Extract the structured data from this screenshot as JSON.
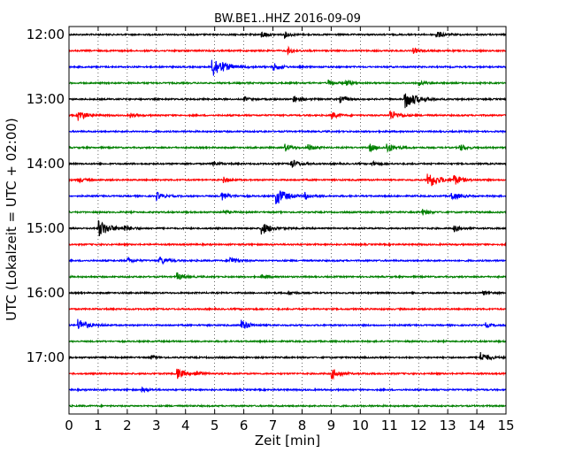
{
  "chart_data": {
    "type": "line",
    "title": "BW.BE1..HHZ 2016-09-09",
    "xlabel": "Zeit  [min]",
    "ylabel": "UTC (Lokalzeit = UTC + 02:00)",
    "xlim": [
      0,
      15
    ],
    "ylim": [
      "12:00",
      "18:00"
    ],
    "x_ticks": [
      "0",
      "1",
      "2",
      "3",
      "4",
      "5",
      "6",
      "7",
      "8",
      "9",
      "10",
      "11",
      "12",
      "13",
      "14",
      "15"
    ],
    "y_ticks": [
      "12:00",
      "13:00",
      "14:00",
      "15:00",
      "16:00",
      "17:00"
    ],
    "grid": {
      "vertical_dotted": true
    },
    "row_interval_min": 15,
    "row_colors": [
      "#000000",
      "#ff0000",
      "#0000ff",
      "#008000"
    ],
    "rows": [
      {
        "start": "12:00",
        "events": [
          {
            "t": 6.6,
            "a": 0.3
          },
          {
            "t": 7.4,
            "a": 0.25
          },
          {
            "t": 12.6,
            "a": 0.35
          },
          {
            "t": 15.0,
            "a": 0.2
          }
        ]
      },
      {
        "start": "12:15",
        "events": [
          {
            "t": 7.5,
            "a": 0.3
          },
          {
            "t": 11.8,
            "a": 0.25
          }
        ]
      },
      {
        "start": "12:30",
        "events": [
          {
            "t": 4.9,
            "a": 1.0
          },
          {
            "t": 7.0,
            "a": 0.35
          }
        ]
      },
      {
        "start": "12:45",
        "events": [
          {
            "t": 8.9,
            "a": 0.25
          },
          {
            "t": 9.5,
            "a": 0.25
          },
          {
            "t": 12.0,
            "a": 0.2
          }
        ]
      },
      {
        "start": "13:00",
        "events": [
          {
            "t": 7.7,
            "a": 0.35
          },
          {
            "t": 9.3,
            "a": 0.3
          },
          {
            "t": 11.5,
            "a": 0.9
          },
          {
            "t": 6.0,
            "a": 0.2
          }
        ]
      },
      {
        "start": "13:15",
        "events": [
          {
            "t": 0.3,
            "a": 0.5
          },
          {
            "t": 2.1,
            "a": 0.2
          },
          {
            "t": 9.0,
            "a": 0.3
          },
          {
            "t": 11.0,
            "a": 0.5
          }
        ]
      },
      {
        "start": "13:30",
        "events": []
      },
      {
        "start": "13:45",
        "events": [
          {
            "t": 7.4,
            "a": 0.35
          },
          {
            "t": 8.2,
            "a": 0.3
          },
          {
            "t": 10.3,
            "a": 0.35
          },
          {
            "t": 10.9,
            "a": 0.45
          },
          {
            "t": 13.4,
            "a": 0.3
          }
        ]
      },
      {
        "start": "14:00",
        "events": [
          {
            "t": 4.9,
            "a": 0.25
          },
          {
            "t": 7.6,
            "a": 0.45
          },
          {
            "t": 10.4,
            "a": 0.2
          }
        ]
      },
      {
        "start": "14:15",
        "events": [
          {
            "t": 0.3,
            "a": 0.25
          },
          {
            "t": 5.3,
            "a": 0.25
          },
          {
            "t": 12.3,
            "a": 0.8
          },
          {
            "t": 13.2,
            "a": 0.45
          }
        ]
      },
      {
        "start": "14:30",
        "events": [
          {
            "t": 3.0,
            "a": 0.35
          },
          {
            "t": 5.2,
            "a": 0.45
          },
          {
            "t": 7.1,
            "a": 0.8
          },
          {
            "t": 8.1,
            "a": 0.3
          },
          {
            "t": 13.1,
            "a": 0.45
          }
        ]
      },
      {
        "start": "14:45",
        "events": [
          {
            "t": 12.1,
            "a": 0.3
          },
          {
            "t": 5.3,
            "a": 0.2
          }
        ]
      },
      {
        "start": "15:00",
        "events": [
          {
            "t": 1.0,
            "a": 0.8
          },
          {
            "t": 1.9,
            "a": 0.25
          },
          {
            "t": 6.6,
            "a": 0.6
          },
          {
            "t": 13.2,
            "a": 0.3
          }
        ]
      },
      {
        "start": "15:15",
        "events": []
      },
      {
        "start": "15:30",
        "events": [
          {
            "t": 2.0,
            "a": 0.25
          },
          {
            "t": 3.1,
            "a": 0.4
          },
          {
            "t": 5.5,
            "a": 0.35
          }
        ]
      },
      {
        "start": "15:45",
        "events": [
          {
            "t": 3.7,
            "a": 0.35
          },
          {
            "t": 6.6,
            "a": 0.2
          }
        ]
      },
      {
        "start": "16:00",
        "events": [
          {
            "t": 7.5,
            "a": 0.2
          },
          {
            "t": 14.2,
            "a": 0.2
          }
        ]
      },
      {
        "start": "16:15",
        "events": []
      },
      {
        "start": "16:30",
        "events": [
          {
            "t": 0.3,
            "a": 0.6
          },
          {
            "t": 5.9,
            "a": 0.5
          },
          {
            "t": 14.3,
            "a": 0.2
          }
        ]
      },
      {
        "start": "16:45",
        "events": []
      },
      {
        "start": "17:00",
        "events": [
          {
            "t": 2.8,
            "a": 0.2
          },
          {
            "t": 14.1,
            "a": 0.5
          }
        ]
      },
      {
        "start": "17:15",
        "events": [
          {
            "t": 3.7,
            "a": 0.45
          },
          {
            "t": 4.3,
            "a": 0.3
          },
          {
            "t": 9.0,
            "a": 0.5
          }
        ]
      },
      {
        "start": "17:30",
        "events": [
          {
            "t": 2.5,
            "a": 0.2
          }
        ]
      },
      {
        "start": "17:45",
        "events": []
      }
    ]
  }
}
